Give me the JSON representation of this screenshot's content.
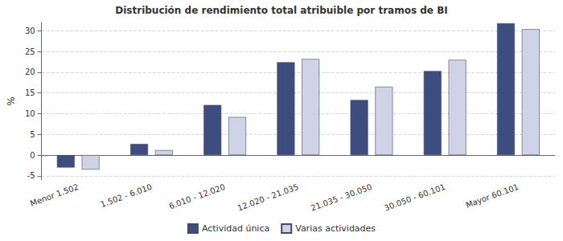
{
  "chart_data": {
    "type": "bar",
    "title": "Distribución de rendimiento total atribuible por tramos de BI",
    "y_label": "%",
    "categories": [
      "Menor 1.502",
      "1.502 - 6.010",
      "6.010 - 12.020",
      "12.020 - 21.035",
      "21.035 - 30.050",
      "30.050 - 60.101",
      "Mayor 60.101"
    ],
    "series": [
      {
        "name": "Actividad única",
        "color": "#3d4d7f",
        "values": [
          -3.0,
          2.7,
          12.1,
          22.4,
          13.3,
          20.3,
          31.8
        ]
      },
      {
        "name": "Varias actividades",
        "color": "#d0d3e6",
        "values": [
          -3.5,
          1.2,
          9.2,
          23.2,
          16.5,
          23.0,
          30.4
        ]
      }
    ],
    "ylim": [
      -6,
      32
    ],
    "yticks": [
      -5,
      0,
      5,
      10,
      15,
      20,
      25,
      30
    ],
    "grid": true,
    "legend": "bottom"
  }
}
